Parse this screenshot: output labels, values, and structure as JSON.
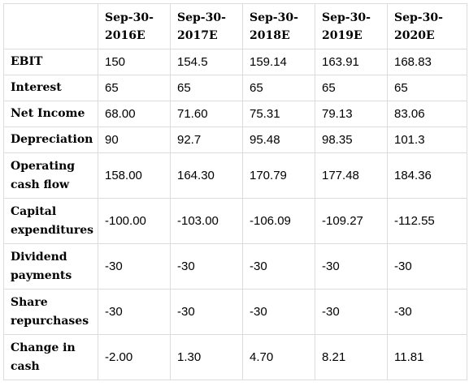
{
  "table": {
    "corner": "",
    "columns": [
      "Sep-30-2016E",
      "Sep-30-2017E",
      "Sep-30-2018E",
      "Sep-30-2019E",
      "Sep-30-2020E"
    ],
    "rows": [
      {
        "label": "EBIT",
        "values": [
          "150",
          "154.5",
          "159.14",
          "163.91",
          "168.83"
        ]
      },
      {
        "label": "Interest",
        "values": [
          "65",
          "65",
          "65",
          "65",
          "65"
        ]
      },
      {
        "label": "Net Income",
        "values": [
          "68.00",
          "71.60",
          "75.31",
          "79.13",
          "83.06"
        ]
      },
      {
        "label": "Depreciation",
        "values": [
          "90",
          "92.7",
          "95.48",
          "98.35",
          "101.3"
        ]
      },
      {
        "label": "Operating cash flow",
        "values": [
          "158.00",
          "164.30",
          "170.79",
          "177.48",
          "184.36"
        ]
      },
      {
        "label": "Capital expenditures",
        "values": [
          "-100.00",
          "-103.00",
          "-106.09",
          "-109.27",
          "-112.55"
        ]
      },
      {
        "label": "Dividend payments",
        "values": [
          "-30",
          "-30",
          "-30",
          "-30",
          "-30"
        ]
      },
      {
        "label": "Share repurchases",
        "values": [
          "-30",
          "-30",
          "-30",
          "-30",
          "-30"
        ]
      },
      {
        "label": "Change in cash",
        "values": [
          "-2.00",
          "1.30",
          "4.70",
          "8.21",
          "11.81"
        ]
      }
    ]
  }
}
